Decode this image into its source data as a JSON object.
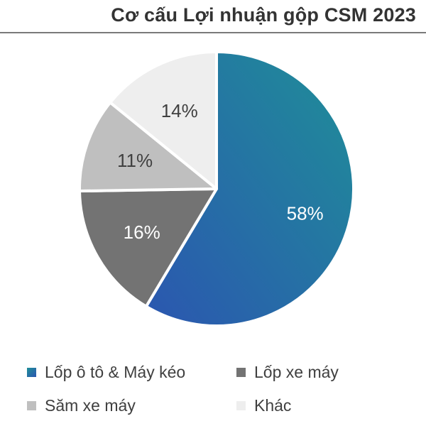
{
  "title": "Cơ cấu Lợi nhuận gộp CSM 2023",
  "chart_data": {
    "type": "pie",
    "title": "Cơ cấu Lợi nhuận gộp CSM 2023",
    "slices": [
      {
        "label": "Lốp ô tô & Máy kéo",
        "value": 58,
        "display": "58%",
        "color": "#1f8f98",
        "color_end": "#2b56b0",
        "text_color": "#ffffff"
      },
      {
        "label": "Lốp xe máy",
        "value": 16,
        "display": "16%",
        "color": "#737373",
        "text_color": "#ffffff"
      },
      {
        "label": "Săm xe máy",
        "value": 11,
        "display": "11%",
        "color": "#bfbfbf",
        "text_color": "#404040"
      },
      {
        "label": "Khác",
        "value": 14,
        "display": "14%",
        "color": "#eeeeee",
        "text_color": "#404040"
      }
    ],
    "start": "12 o'clock",
    "direction": "clockwise",
    "legend_position": "bottom"
  }
}
